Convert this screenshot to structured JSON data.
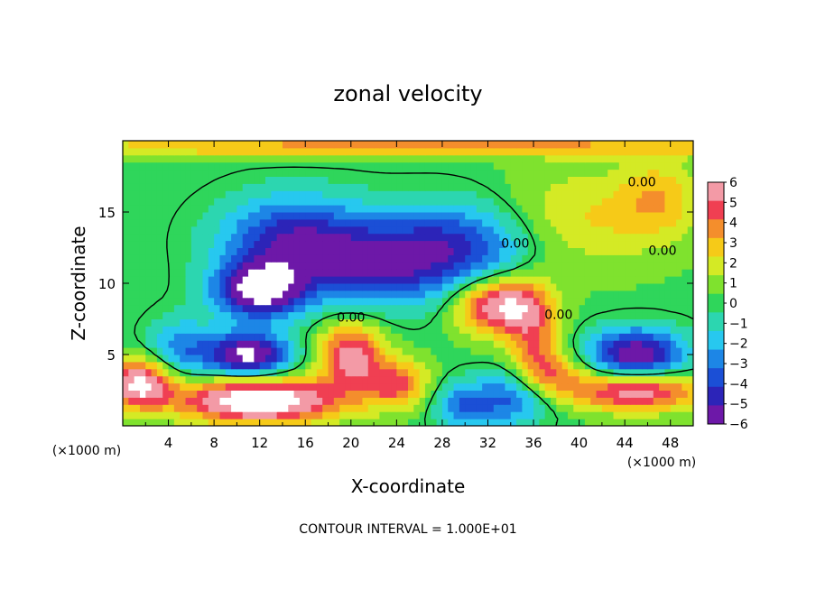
{
  "chart_data": {
    "type": "heatmap",
    "title": "zonal velocity",
    "xlabel": "X-coordinate",
    "ylabel": "Z-coordinate",
    "x_unit": "(×1000 m)",
    "y_unit": "(×1000 m)",
    "xlim": [
      0,
      50
    ],
    "ylim": [
      0,
      20
    ],
    "x_ticks": [
      4,
      8,
      12,
      16,
      20,
      24,
      28,
      32,
      36,
      40,
      44,
      48
    ],
    "y_ticks": [
      5,
      10,
      15
    ],
    "colorbar": {
      "ticks": [
        6,
        5,
        4,
        3,
        2,
        1,
        0,
        -1,
        -2,
        -3,
        -4,
        -5,
        -6
      ],
      "colors": [
        "#f39aa6",
        "#f03f52",
        "#f48e2c",
        "#f6ca18",
        "#d4ea25",
        "#7fe22e",
        "#2fd65b",
        "#2cd6b0",
        "#27c8ef",
        "#1d86e6",
        "#1b4fd6",
        "#2c24b8",
        "#6d18a8"
      ]
    },
    "contour_label": "0.00",
    "contour_interval_text": "CONTOUR INTERVAL = 1.000E+01",
    "annotations": [
      {
        "text": "0.00",
        "x": 20,
        "y": 7.3
      },
      {
        "text": "0.00",
        "x": 34.4,
        "y": 12.5
      },
      {
        "text": "0.00",
        "x": 38.2,
        "y": 7.5
      },
      {
        "text": "0.00",
        "x": 45.5,
        "y": 16.8
      },
      {
        "text": "0.00",
        "x": 47.3,
        "y": 12
      }
    ],
    "features": [
      {
        "x": 15,
        "y": 13,
        "v": -5.2,
        "sx": 4.5,
        "sy": 2.2
      },
      {
        "x": 29,
        "y": 12.5,
        "v": -4.8,
        "sx": 5,
        "sy": 2.2
      },
      {
        "x": 22,
        "y": 11,
        "v": -3.5,
        "sx": 4,
        "sy": 2
      },
      {
        "x": 12,
        "y": 9.5,
        "v": -7,
        "sx": 2.8,
        "sy": 1.4
      },
      {
        "x": 11,
        "y": 5,
        "v": -7,
        "sx": 2.6,
        "sy": 1.1
      },
      {
        "x": 45,
        "y": 5,
        "v": -6.5,
        "sx": 3,
        "sy": 1.3
      },
      {
        "x": 35,
        "y": 2,
        "v": -4.5,
        "sx": 2.2,
        "sy": 1.4
      },
      {
        "x": 30,
        "y": 1.5,
        "v": -3.5,
        "sx": 2,
        "sy": 1.2
      },
      {
        "x": 33,
        "y": 8.5,
        "v": 6.5,
        "sx": 2.6,
        "sy": 1.4
      },
      {
        "x": 20,
        "y": 5,
        "v": 5.5,
        "sx": 2,
        "sy": 1.6
      },
      {
        "x": 12,
        "y": 1.8,
        "v": 8,
        "sx": 5,
        "sy": 1.1
      },
      {
        "x": 1.5,
        "y": 3,
        "v": 6.5,
        "sx": 2,
        "sy": 1.2
      },
      {
        "x": 45,
        "y": 2.5,
        "v": 6,
        "sx": 4,
        "sy": 1
      },
      {
        "x": 36,
        "y": 5.5,
        "v": 3.5,
        "sx": 1.6,
        "sy": 3
      },
      {
        "x": 24,
        "y": 3,
        "v": 4,
        "sx": 2,
        "sy": 1.2
      },
      {
        "x": 40,
        "y": 14.5,
        "v": 2.2,
        "sx": 5,
        "sy": 2.5
      },
      {
        "x": 47,
        "y": 16,
        "v": 2.5,
        "sx": 2.5,
        "sy": 2
      },
      {
        "x": 5,
        "y": 5.5,
        "v": -3,
        "sx": 2,
        "sy": 1.5
      },
      {
        "x": 38,
        "y": 3.5,
        "v": 3,
        "sx": 2,
        "sy": 1.2
      },
      {
        "x": 25,
        "y": 19.6,
        "v": 3.5,
        "sx": 25,
        "sy": 0.5
      }
    ]
  }
}
